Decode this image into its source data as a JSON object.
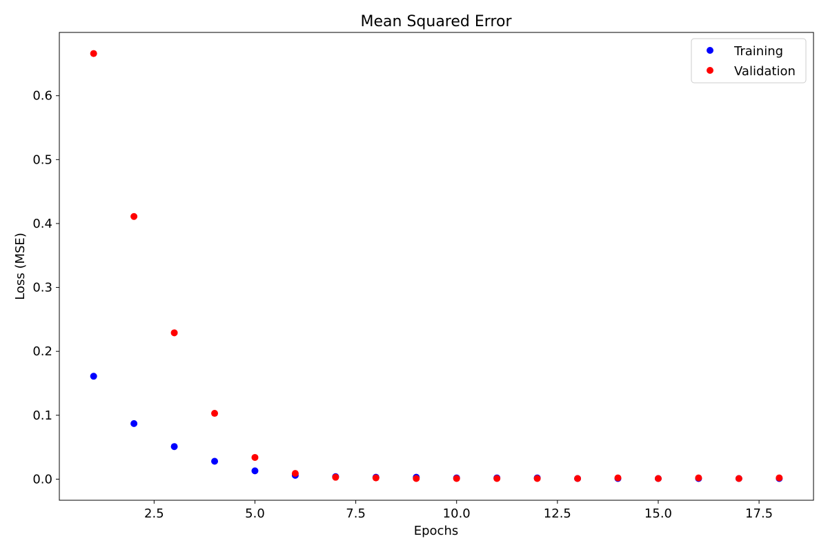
{
  "chart_data": {
    "type": "scatter",
    "title": "Mean Squared Error",
    "xlabel": "Epochs",
    "ylabel": "Loss (MSE)",
    "xlim": [
      0.15,
      18.85
    ],
    "ylim": [
      -0.033,
      0.699
    ],
    "x_ticks": [
      "2.5",
      "5.0",
      "7.5",
      "10.0",
      "12.5",
      "15.0",
      "17.5"
    ],
    "y_ticks": [
      "0.0",
      "0.1",
      "0.2",
      "0.3",
      "0.4",
      "0.5",
      "0.6"
    ],
    "grid": false,
    "legend_position": "top-right",
    "series": [
      {
        "name": "Training",
        "color": "#0000ff",
        "x": [
          1,
          2,
          3,
          4,
          5,
          6,
          7,
          8,
          9,
          10,
          11,
          12,
          13,
          14,
          15,
          16,
          17,
          18
        ],
        "y": [
          0.161,
          0.087,
          0.051,
          0.028,
          0.013,
          0.006,
          0.004,
          0.003,
          0.003,
          0.002,
          0.002,
          0.002,
          0.001,
          0.001,
          0.001,
          0.001,
          0.001,
          0.001
        ]
      },
      {
        "name": "Validation",
        "color": "#ff0000",
        "x": [
          1,
          2,
          3,
          4,
          5,
          6,
          7,
          8,
          9,
          10,
          11,
          12,
          13,
          14,
          15,
          16,
          17,
          18
        ],
        "y": [
          0.666,
          0.411,
          0.229,
          0.103,
          0.034,
          0.009,
          0.003,
          0.002,
          0.001,
          0.001,
          0.001,
          0.001,
          0.001,
          0.002,
          0.001,
          0.002,
          0.001,
          0.002
        ]
      }
    ]
  }
}
